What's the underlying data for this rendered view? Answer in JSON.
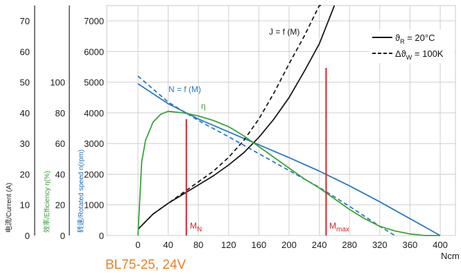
{
  "caption": "BL75-25, 24V",
  "chart_data": {
    "type": "line",
    "x_unit": "Ncm",
    "xlim": [
      0,
      400
    ],
    "x_ticks": [
      "0",
      "40",
      "80",
      "120",
      "160",
      "200",
      "240",
      "280",
      "320",
      "360",
      "400"
    ],
    "axes": {
      "current": {
        "label": "电流/Current (A)",
        "ticks": [
          "0",
          "10",
          "20",
          "30",
          "40",
          "50",
          "60",
          "70"
        ],
        "ylim": [
          0,
          75
        ]
      },
      "efficiency": {
        "label": "效率/Efficiency η(%)",
        "ticks": [
          "0",
          "20",
          "40",
          "60",
          "80",
          "100"
        ],
        "ylim": [
          0,
          150
        ]
      },
      "speed": {
        "label": "转速/Rotated speed n(rpm)",
        "ticks": [
          "0",
          "1000",
          "2000",
          "3000",
          "4000",
          "5000",
          "6000",
          "7000"
        ],
        "ylim": [
          0,
          7500
        ]
      }
    },
    "legend": {
      "position": "top-right",
      "items": [
        {
          "symbol": "ϑ",
          "sub": "R",
          "rest": " = 20°C",
          "style": "solid"
        },
        {
          "symbol": "Δϑ",
          "sub": "W",
          "rest": " = 100K",
          "style": "dashed"
        }
      ]
    },
    "curve_labels": {
      "current": "J = f (M)",
      "speed": "N = f (M)",
      "efficiency": "η"
    },
    "markers": [
      {
        "label": "M",
        "sub": "N",
        "x": 64
      },
      {
        "label": "M",
        "sub": "max",
        "x": 249
      }
    ],
    "series": [
      {
        "quantity": "speed",
        "condition": "solid",
        "color": "#2a78c4",
        "x": [
          0,
          40,
          80,
          120,
          160,
          200,
          240,
          280,
          320,
          360,
          400
        ],
        "y": [
          4950,
          4300,
          3800,
          3380,
          2960,
          2540,
          2100,
          1620,
          1100,
          550,
          0
        ]
      },
      {
        "quantity": "speed",
        "condition": "dashed",
        "color": "#2a78c4",
        "x": [
          0,
          40,
          80,
          120,
          160,
          200,
          240,
          280,
          320,
          340
        ],
        "y": [
          5200,
          4350,
          3750,
          3220,
          2670,
          2120,
          1570,
          950,
          300,
          0
        ]
      },
      {
        "quantity": "current",
        "condition": "solid",
        "color": "#1a1a1a",
        "x": [
          0,
          20,
          40,
          60,
          80,
          100,
          120,
          140,
          160,
          180,
          200,
          220,
          240,
          260
        ],
        "y": [
          2,
          7,
          10.5,
          13.5,
          16.5,
          19.5,
          23,
          27,
          32,
          38,
          45,
          53.5,
          62.5,
          75
        ]
      },
      {
        "quantity": "current",
        "condition": "dashed",
        "color": "#1a1a1a",
        "x": [
          0,
          20,
          40,
          60,
          80,
          100,
          120,
          140,
          160,
          180,
          200,
          220,
          240,
          245
        ],
        "y": [
          2,
          7,
          10.5,
          14,
          17.5,
          21,
          25.5,
          31,
          38,
          46.5,
          56,
          65,
          75,
          76
        ]
      },
      {
        "quantity": "efficiency",
        "condition": "solid",
        "color": "#3aa23a",
        "x": [
          0,
          5,
          10,
          20,
          30,
          40,
          60,
          80,
          100,
          120,
          140,
          160,
          180,
          200,
          220,
          240,
          260,
          280,
          300,
          320,
          340,
          360,
          380,
          400
        ],
        "y": [
          0,
          48,
          62,
          74,
          79,
          81,
          80,
          78,
          75,
          71,
          65,
          58,
          51,
          44,
          37,
          31,
          24,
          17,
          11,
          6,
          3,
          1,
          0,
          0
        ]
      }
    ],
    "grid": true
  }
}
